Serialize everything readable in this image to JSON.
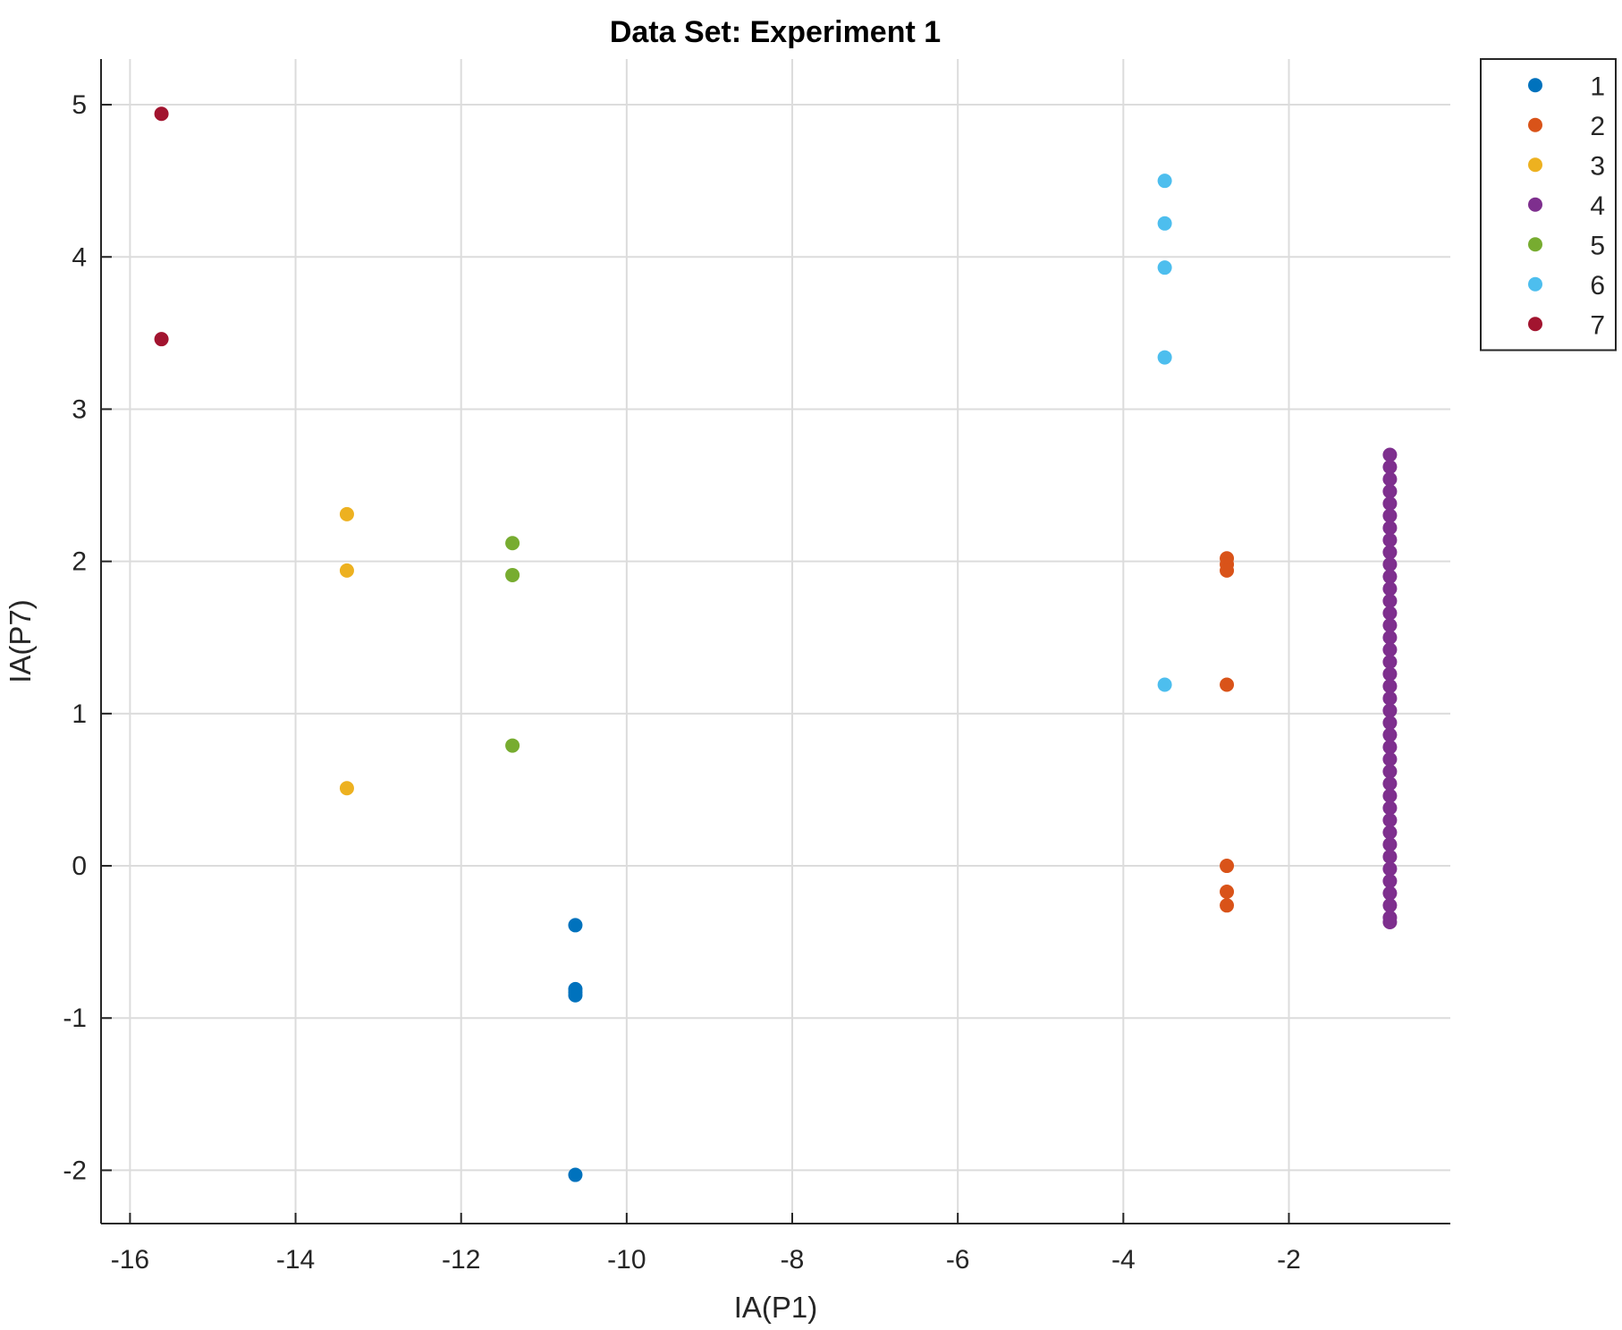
{
  "chart_data": {
    "type": "scatter",
    "title": "Data Set: Experiment 1",
    "xlabel": "IA(P1)",
    "ylabel": "IA(P7)",
    "xlim": [
      -16.35,
      -0.05
    ],
    "ylim": [
      -2.35,
      5.3
    ],
    "xticks": [
      -16,
      -14,
      -12,
      -10,
      -8,
      -6,
      -4,
      -2
    ],
    "yticks": [
      -2,
      -1,
      0,
      1,
      2,
      3,
      4,
      5
    ],
    "xtick_labels": [
      "-16",
      "-14",
      "-12",
      "-10",
      "-8",
      "-6",
      "-4",
      "-2"
    ],
    "ytick_labels": [
      "-2",
      "-1",
      "0",
      "1",
      "2",
      "3",
      "4",
      "5"
    ],
    "grid": true,
    "legend_position": "outside-top-right",
    "series": [
      {
        "name": "1",
        "color": "#0072BD",
        "points": [
          [
            -10.62,
            -0.39
          ],
          [
            -10.62,
            -0.81
          ],
          [
            -10.62,
            -0.83
          ],
          [
            -10.62,
            -0.85
          ],
          [
            -10.62,
            -2.03
          ]
        ]
      },
      {
        "name": "2",
        "color": "#D95319",
        "points": [
          [
            -2.75,
            2.02
          ],
          [
            -2.75,
            1.98
          ],
          [
            -2.75,
            1.94
          ],
          [
            -2.75,
            1.19
          ],
          [
            -2.75,
            0.0
          ],
          [
            -2.75,
            -0.17
          ],
          [
            -2.75,
            -0.26
          ]
        ]
      },
      {
        "name": "3",
        "color": "#EDB120",
        "points": [
          [
            -13.38,
            2.31
          ],
          [
            -13.38,
            1.94
          ],
          [
            -13.38,
            0.51
          ]
        ]
      },
      {
        "name": "4",
        "color": "#7E2F8E",
        "points": [
          [
            -0.78,
            2.7
          ],
          [
            -0.78,
            2.62
          ],
          [
            -0.78,
            2.54
          ],
          [
            -0.78,
            2.46
          ],
          [
            -0.78,
            2.38
          ],
          [
            -0.78,
            2.3
          ],
          [
            -0.78,
            2.22
          ],
          [
            -0.78,
            2.14
          ],
          [
            -0.78,
            2.06
          ],
          [
            -0.78,
            1.98
          ],
          [
            -0.78,
            1.9
          ],
          [
            -0.78,
            1.82
          ],
          [
            -0.78,
            1.74
          ],
          [
            -0.78,
            1.66
          ],
          [
            -0.78,
            1.58
          ],
          [
            -0.78,
            1.5
          ],
          [
            -0.78,
            1.42
          ],
          [
            -0.78,
            1.34
          ],
          [
            -0.78,
            1.26
          ],
          [
            -0.78,
            1.18
          ],
          [
            -0.78,
            1.1
          ],
          [
            -0.78,
            1.02
          ],
          [
            -0.78,
            0.94
          ],
          [
            -0.78,
            0.86
          ],
          [
            -0.78,
            0.78
          ],
          [
            -0.78,
            0.7
          ],
          [
            -0.78,
            0.62
          ],
          [
            -0.78,
            0.54
          ],
          [
            -0.78,
            0.46
          ],
          [
            -0.78,
            0.38
          ],
          [
            -0.78,
            0.3
          ],
          [
            -0.78,
            0.22
          ],
          [
            -0.78,
            0.14
          ],
          [
            -0.78,
            0.06
          ],
          [
            -0.78,
            -0.02
          ],
          [
            -0.78,
            -0.1
          ],
          [
            -0.78,
            -0.18
          ],
          [
            -0.78,
            -0.26
          ],
          [
            -0.78,
            -0.34
          ],
          [
            -0.78,
            -0.37
          ]
        ]
      },
      {
        "name": "5",
        "color": "#77AC30",
        "points": [
          [
            -11.38,
            2.12
          ],
          [
            -11.38,
            1.91
          ],
          [
            -11.38,
            0.79
          ]
        ]
      },
      {
        "name": "6",
        "color": "#4DBEEE",
        "points": [
          [
            -3.5,
            4.5
          ],
          [
            -3.5,
            4.22
          ],
          [
            -3.5,
            3.93
          ],
          [
            -3.5,
            3.34
          ],
          [
            -3.5,
            1.19
          ]
        ]
      },
      {
        "name": "7",
        "color": "#A2142F",
        "points": [
          [
            -15.62,
            4.94
          ],
          [
            -15.62,
            3.46
          ]
        ]
      }
    ]
  }
}
